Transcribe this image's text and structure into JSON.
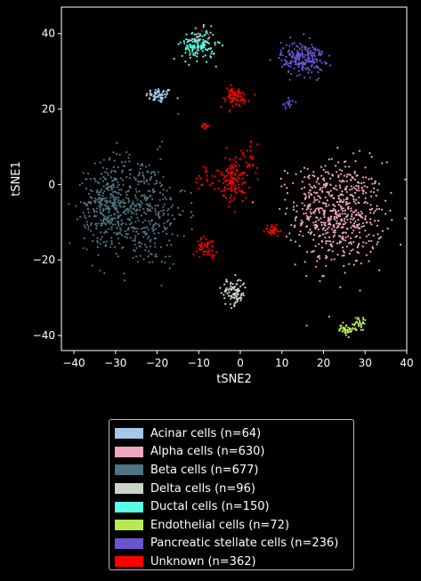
{
  "chart_data": {
    "type": "scatter",
    "title": "",
    "xlabel": "tSNE2",
    "ylabel": "tSNE1",
    "xlim": [
      -43,
      40
    ],
    "ylim": [
      -44,
      47
    ],
    "xticks": [
      -40,
      -30,
      -20,
      -10,
      0,
      10,
      20,
      30,
      40
    ],
    "yticks": [
      -40,
      -20,
      0,
      20,
      40
    ],
    "grid": false,
    "legend_position": "below",
    "background": "#000000",
    "series": [
      {
        "name": "Acinar cells (n=64)",
        "color": "#a6c8e8",
        "n": 64,
        "clusters": [
          {
            "cx": -19.5,
            "cy": 23.6,
            "sx": 1.6,
            "sy": 1.0,
            "w": 1
          }
        ]
      },
      {
        "name": "Alpha cells (n=630)",
        "color": "#f1a7c0",
        "n": 630,
        "clusters": [
          {
            "cx": 24,
            "cy": -8,
            "sx": 5.2,
            "sy": 7,
            "w": 0.9
          },
          {
            "cx": 17,
            "cy": -3,
            "sx": 3,
            "sy": 4,
            "w": 0.1
          }
        ]
      },
      {
        "name": "Beta cells (n=677)",
        "color": "#4f7483",
        "n": 677,
        "clusters": [
          {
            "cx": -24,
            "cy": -7,
            "sx": 5.5,
            "sy": 7.5,
            "w": 0.6
          },
          {
            "cx": -32,
            "cy": -5,
            "sx": 2.8,
            "sy": 5,
            "w": 0.4
          }
        ]
      },
      {
        "name": "Delta cells (n=96)",
        "color": "#c8d6c8",
        "n": 96,
        "clusters": [
          {
            "cx": -1.5,
            "cy": -28.5,
            "sx": 1.5,
            "sy": 1.8,
            "w": 1
          }
        ]
      },
      {
        "name": "Ductal cells (n=150)",
        "color": "#59ffe8",
        "n": 150,
        "clusters": [
          {
            "cx": -10,
            "cy": 37,
            "sx": 2.0,
            "sy": 2.0,
            "w": 1
          }
        ]
      },
      {
        "name": "Endothelial cells (n=72)",
        "color": "#b7ea52",
        "n": 72,
        "clusters": [
          {
            "cx": 25.5,
            "cy": -38.5,
            "sx": 0.9,
            "sy": 0.8,
            "w": 0.55
          },
          {
            "cx": 28.5,
            "cy": -36.8,
            "sx": 0.8,
            "sy": 0.9,
            "w": 0.45
          }
        ]
      },
      {
        "name": "Pancreatic stellate cells (n=236)",
        "color": "#6a55d0",
        "n": 236,
        "clusters": [
          {
            "cx": 15,
            "cy": 33.5,
            "sx": 2.6,
            "sy": 2.2,
            "w": 0.93
          },
          {
            "cx": 11.5,
            "cy": 21.5,
            "sx": 0.7,
            "sy": 0.8,
            "w": 0.07
          }
        ]
      },
      {
        "name": "Unknown (n=362)",
        "color": "#ff0000",
        "n": 362,
        "clusters": [
          {
            "cx": -1.5,
            "cy": 1.5,
            "sx": 1.6,
            "sy": 3.0,
            "w": 0.35
          },
          {
            "cx": -1.5,
            "cy": 23,
            "sx": 1.8,
            "sy": 1.4,
            "w": 0.22
          },
          {
            "cx": -8,
            "cy": -16.5,
            "sx": 1.2,
            "sy": 1.2,
            "w": 0.13
          },
          {
            "cx": 8,
            "cy": -12,
            "sx": 1.0,
            "sy": 0.8,
            "w": 0.1
          },
          {
            "cx": -8.5,
            "cy": 15.5,
            "sx": 0.4,
            "sy": 0.4,
            "w": 0.04
          },
          {
            "cx": -10,
            "cy": 38,
            "sx": 1.5,
            "sy": 1.5,
            "w": 0.03
          },
          {
            "cx": 2,
            "cy": 7,
            "sx": 2.0,
            "sy": 3.0,
            "w": 0.06
          },
          {
            "cx": -7,
            "cy": 2,
            "sx": 2.0,
            "sy": 2.0,
            "w": 0.07
          }
        ]
      }
    ]
  }
}
